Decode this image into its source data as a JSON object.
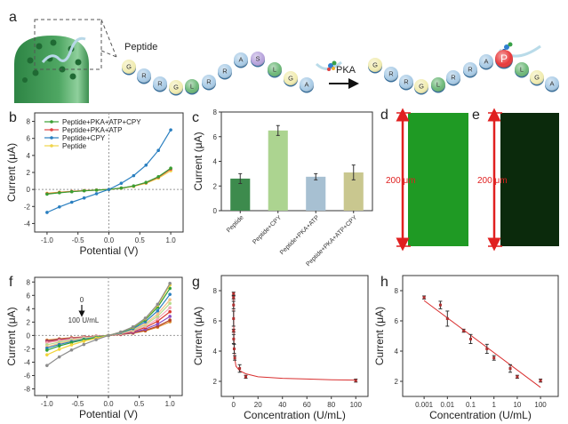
{
  "panel_labels": {
    "a": "a",
    "b": "b",
    "c": "c",
    "d": "d",
    "e": "e",
    "f": "f",
    "g": "g",
    "h": "h"
  },
  "panel_a": {
    "peptide_label": "Peptide",
    "enzyme_label": "PKA",
    "sequence_before": [
      "G",
      "R",
      "R",
      "G",
      "L",
      "R",
      "R",
      "A",
      "S",
      "L",
      "G",
      "A"
    ],
    "sequence_after": [
      "G",
      "R",
      "R",
      "G",
      "L",
      "R",
      "R",
      "A",
      "P",
      "L",
      "G",
      "A"
    ],
    "residue_colors": {
      "G": "#f1ecb0",
      "R": "#a9cbe6",
      "A": "#a9cbe6",
      "L": "#6db878",
      "S": "#b7a3dc",
      "P": "#e8383a"
    }
  },
  "panel_d": {
    "scale_label": "200 μm",
    "image_color": "#1f9a24"
  },
  "panel_e": {
    "scale_label": "200 μm",
    "image_color": "#0b2a0c"
  },
  "chart_data": [
    {
      "panel": "b",
      "type": "line",
      "xlabel": "Potential (V)",
      "ylabel": "Current (μA)",
      "xlim": [
        -1.2,
        1.2
      ],
      "ylim": [
        -5,
        9
      ],
      "xticks": [
        -1,
        -0.5,
        0,
        0.5,
        1
      ],
      "xtick_labels": [
        "-1.0",
        "-0.5",
        "0.0",
        "0.5",
        "1.0"
      ],
      "yticks": [
        -4,
        -2,
        0,
        2,
        4,
        6,
        8
      ],
      "ytick_labels": [
        "-4",
        "-2",
        "0",
        "2",
        "4",
        "6",
        "8"
      ],
      "legend": "top-left",
      "x": [
        -1,
        -0.8,
        -0.6,
        -0.4,
        -0.2,
        0,
        0.2,
        0.4,
        0.6,
        0.8,
        1
      ],
      "series": [
        {
          "name": "Peptide+PKA+ATP+CPY",
          "color": "#3a9f32",
          "values": [
            -0.55,
            -0.39,
            -0.27,
            -0.16,
            -0.08,
            0,
            0.16,
            0.41,
            0.83,
            1.5,
            2.5
          ]
        },
        {
          "name": "Peptide+PKA+ATP",
          "color": "#e04444",
          "values": [
            -0.5,
            -0.36,
            -0.24,
            -0.15,
            -0.07,
            0,
            0.16,
            0.4,
            0.79,
            1.44,
            2.4
          ]
        },
        {
          "name": "Peptide+CPY",
          "color": "#2a7fc0",
          "values": [
            -2.7,
            -2.05,
            -1.5,
            -1.0,
            -0.5,
            0,
            0.73,
            1.62,
            2.86,
            4.59,
            7.0
          ]
        },
        {
          "name": "Peptide",
          "color": "#f0d44a",
          "values": [
            -0.45,
            -0.32,
            -0.22,
            -0.13,
            -0.06,
            0,
            0.14,
            0.36,
            0.73,
            1.32,
            2.2
          ]
        }
      ]
    },
    {
      "panel": "c",
      "type": "bar",
      "ylabel": "Current (μA)",
      "ylim": [
        0,
        8
      ],
      "yticks": [
        0,
        2,
        4,
        6,
        8
      ],
      "ytick_labels": [
        "0",
        "2",
        "4",
        "6",
        "8"
      ],
      "categories": [
        "Peptide",
        "Peptide+CPY",
        "Peptide+PKA+ATP",
        "Peptide+PKA+ATP+CPY"
      ],
      "values": [
        2.6,
        6.5,
        2.75,
        3.1
      ],
      "errors": [
        0.4,
        0.4,
        0.25,
        0.6
      ],
      "colors": [
        "#3d8b4d",
        "#acd490",
        "#a7c0d2",
        "#c9c78f"
      ]
    },
    {
      "panel": "f",
      "type": "line",
      "xlabel": "Potential (V)",
      "ylabel": "Current (μA)",
      "xlim": [
        -1.2,
        1.2
      ],
      "ylim": [
        -9,
        8.7
      ],
      "xticks": [
        -1,
        -0.5,
        0,
        0.5,
        1
      ],
      "xtick_labels": [
        "-1.0",
        "-0.5",
        "0.0",
        "0.5",
        "1.0"
      ],
      "yticks": [
        -8,
        -6,
        -4,
        -2,
        0,
        2,
        4,
        6,
        8
      ],
      "ytick_labels": [
        "-8",
        "-6",
        "-4",
        "-2",
        "0",
        "2",
        "4",
        "6",
        "8"
      ],
      "annotation": {
        "top": "0",
        "bottom": "100 U/mL"
      },
      "x": [
        -1,
        -0.8,
        -0.6,
        -0.4,
        -0.2,
        0,
        0.2,
        0.4,
        0.6,
        0.8,
        1
      ],
      "series": [
        {
          "color": "#8c8c8c",
          "values": [
            -4.5,
            -3.21,
            -2.18,
            -1.35,
            -0.64,
            0,
            0.51,
            1.29,
            2.58,
            4.66,
            7.8
          ]
        },
        {
          "color": "#f2d43a",
          "values": [
            -2.9,
            -2.07,
            -1.41,
            -0.87,
            -0.41,
            0,
            0.5,
            1.24,
            2.5,
            4.51,
            7.55
          ]
        },
        {
          "color": "#2f9e3a",
          "values": [
            -2.2,
            -1.57,
            -1.07,
            -0.66,
            -0.31,
            0,
            0.46,
            1.16,
            2.33,
            4.22,
            7.05
          ]
        },
        {
          "color": "#2a7fc0",
          "values": [
            -1.9,
            -1.36,
            -0.92,
            -0.57,
            -0.27,
            0,
            0.4,
            1.01,
            2.04,
            3.68,
            6.15
          ]
        },
        {
          "color": "#f5c08a",
          "values": [
            -1.7,
            -1.21,
            -0.82,
            -0.51,
            -0.24,
            0,
            0.35,
            0.88,
            1.77,
            3.2,
            5.35
          ]
        },
        {
          "color": "#b7dd8c",
          "values": [
            -1.4,
            -1.0,
            -0.68,
            -0.42,
            -0.2,
            0,
            0.31,
            0.79,
            1.59,
            2.87,
            4.8
          ]
        },
        {
          "color": "#f2a8b8",
          "values": [
            -1.1,
            -0.79,
            -0.53,
            -0.33,
            -0.16,
            0,
            0.27,
            0.68,
            1.37,
            2.48,
            4.15
          ]
        },
        {
          "color": "#d9372c",
          "values": [
            -1.0,
            -0.71,
            -0.49,
            -0.3,
            -0.14,
            0,
            0.23,
            0.59,
            1.18,
            2.12,
            3.55
          ]
        },
        {
          "color": "#8a4fc0",
          "values": [
            -0.9,
            -0.64,
            -0.44,
            -0.27,
            -0.13,
            0,
            0.19,
            0.47,
            0.94,
            1.7,
            2.85
          ]
        },
        {
          "color": "#b5402a",
          "values": [
            -0.8,
            -0.57,
            -0.39,
            -0.24,
            -0.11,
            0,
            0.15,
            0.38,
            0.76,
            1.38,
            2.3
          ]
        },
        {
          "color": "#d98a2a",
          "values": [
            -0.7,
            -0.5,
            -0.34,
            -0.21,
            -0.1,
            0,
            0.13,
            0.34,
            0.68,
            1.23,
            2.05
          ]
        }
      ]
    },
    {
      "panel": "g",
      "type": "scatter",
      "xlabel": "Concentration (U/mL)",
      "ylabel": "Current (μA)",
      "xlim": [
        -10,
        110
      ],
      "ylim": [
        1,
        9
      ],
      "xticks": [
        0,
        20,
        40,
        60,
        80,
        100
      ],
      "xtick_labels": [
        "0",
        "20",
        "40",
        "60",
        "80",
        "100"
      ],
      "yticks": [
        2,
        4,
        6,
        8
      ],
      "ytick_labels": [
        "2",
        "4",
        "6",
        "8"
      ],
      "x": [
        0,
        0.001,
        0.005,
        0.01,
        0.05,
        0.1,
        0.5,
        1,
        5,
        10,
        100
      ],
      "y": [
        7.8,
        7.55,
        7.05,
        6.15,
        5.35,
        4.8,
        4.15,
        3.55,
        2.85,
        2.3,
        2.05
      ],
      "errors": [
        0.1,
        0.1,
        0.25,
        0.5,
        0.1,
        0.3,
        0.3,
        0.15,
        0.25,
        0.1,
        0.1
      ],
      "fit_color": "#d93030",
      "fit": {
        "x": [
          0,
          0.1,
          0.3,
          0.5,
          1,
          2,
          5,
          10,
          20,
          40,
          60,
          80,
          100
        ],
        "y": [
          7.8,
          6.0,
          4.9,
          4.2,
          3.5,
          3.0,
          2.7,
          2.5,
          2.3,
          2.2,
          2.15,
          2.1,
          2.08
        ]
      }
    },
    {
      "panel": "h",
      "type": "scatter",
      "xscale": "log",
      "xlabel": "Concentration (U/mL)",
      "ylabel": "Current (μA)",
      "xlim": [
        0.00012,
        575
      ],
      "ylim": [
        1,
        9
      ],
      "xticks": [
        0.001,
        0.01,
        0.1,
        1,
        10,
        100
      ],
      "xtick_labels": [
        "0.001",
        "0.01",
        "0.1",
        "1",
        "10",
        "100"
      ],
      "yticks": [
        2,
        4,
        6,
        8
      ],
      "ytick_labels": [
        "2",
        "4",
        "6",
        "8"
      ],
      "x": [
        0.001,
        0.005,
        0.01,
        0.05,
        0.1,
        0.5,
        1,
        5,
        10,
        100
      ],
      "y": [
        7.55,
        7.05,
        6.15,
        5.35,
        4.8,
        4.15,
        3.55,
        2.85,
        2.3,
        2.05
      ],
      "errors": [
        0.1,
        0.25,
        0.5,
        0.1,
        0.3,
        0.3,
        0.15,
        0.25,
        0.1,
        0.1
      ],
      "fit_color": "#d93030",
      "fit": {
        "x": [
          0.001,
          100
        ],
        "y": [
          7.35,
          1.6
        ]
      }
    }
  ]
}
